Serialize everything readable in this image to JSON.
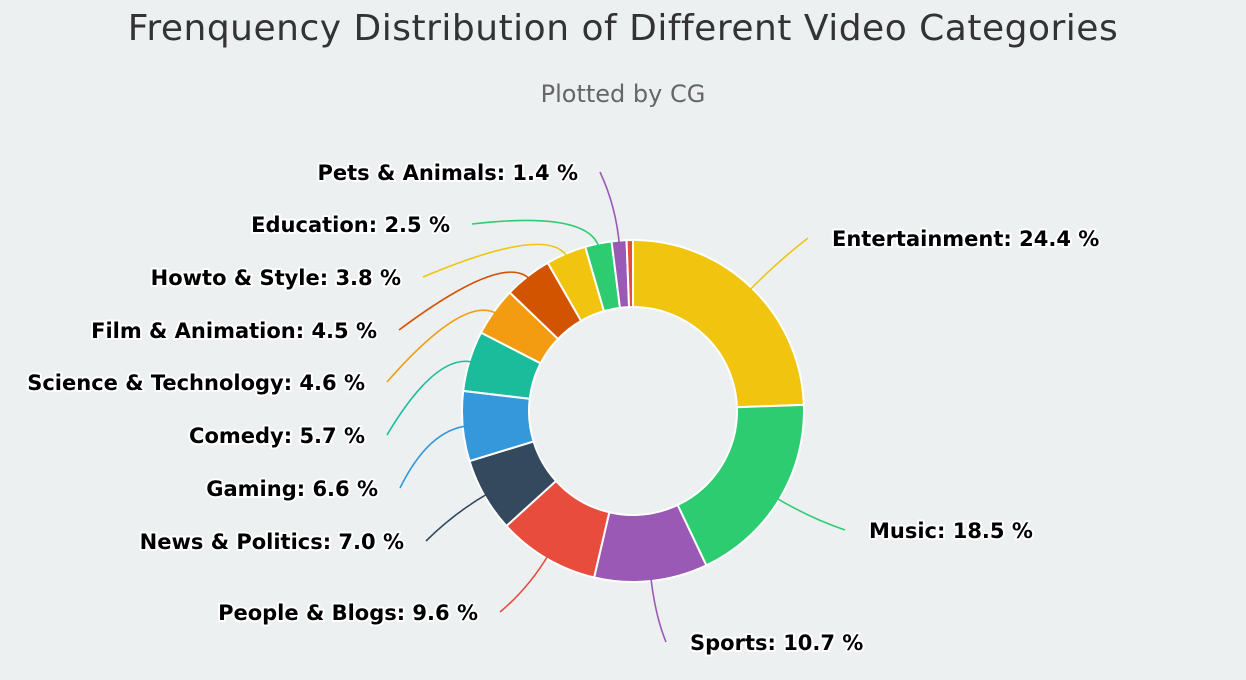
{
  "chart_data": {
    "type": "pie",
    "variant": "donut",
    "title": "Frenquency Distribution of Different Video Categories",
    "subtitle": "Plotted by CG",
    "value_suffix": " %",
    "slices": [
      {
        "label": "Entertainment",
        "value": 24.4,
        "color": "#f1c40f"
      },
      {
        "label": "Music",
        "value": 18.5,
        "color": "#2ecc71"
      },
      {
        "label": "Sports",
        "value": 10.7,
        "color": "#9b59b6"
      },
      {
        "label": "People & Blogs",
        "value": 9.6,
        "color": "#e74c3c"
      },
      {
        "label": "News & Politics",
        "value": 7.0,
        "color": "#34495e"
      },
      {
        "label": "Gaming",
        "value": 6.6,
        "color": "#3498db"
      },
      {
        "label": "Comedy",
        "value": 5.7,
        "color": "#1abc9c"
      },
      {
        "label": "Science & Technology",
        "value": 4.6,
        "color": "#f39c12"
      },
      {
        "label": "Film & Animation",
        "value": 4.5,
        "color": "#d35400"
      },
      {
        "label": "Howto & Style",
        "value": 3.8,
        "color": "#f1c40f"
      },
      {
        "label": "Education",
        "value": 2.5,
        "color": "#2ecc71"
      },
      {
        "label": "Pets & Animals",
        "value": 1.4,
        "color": "#9b59b6"
      },
      {
        "label": "",
        "value": 0.6,
        "color": "#e74c3c"
      }
    ]
  }
}
